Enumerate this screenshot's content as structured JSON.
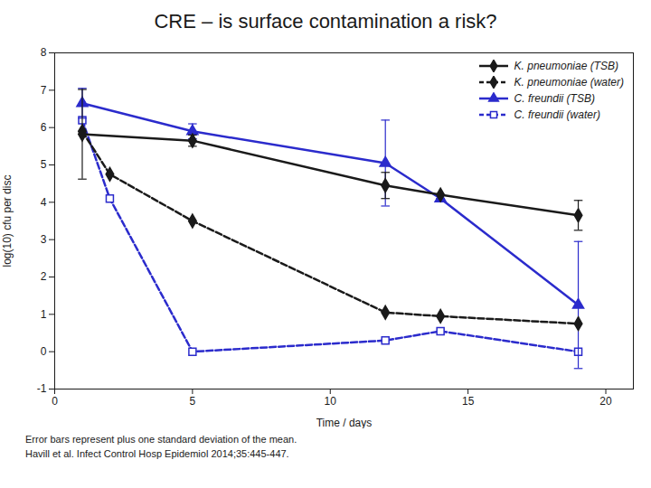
{
  "chart_data": {
    "type": "line",
    "title": "CRE – is surface contamination a risk?",
    "xlabel": "Time / days",
    "ylabel": "log(10) cfu per disc",
    "xlim": [
      0,
      21
    ],
    "ylim": [
      -1,
      8
    ],
    "xticks": [
      0,
      5,
      10,
      15,
      20
    ],
    "yticks": [
      -1,
      0,
      1,
      2,
      3,
      4,
      5,
      6,
      7,
      8
    ],
    "legend": "upper right",
    "series": [
      {
        "name": "K. pneumoniae (TSB)",
        "color": "#1a1a1a",
        "marker": "diamond",
        "line_style": "solid",
        "x": [
          1,
          5,
          12,
          14,
          19
        ],
        "values": [
          5.82,
          5.65,
          4.45,
          4.2,
          3.65
        ],
        "yerr": [
          1.2,
          0.15,
          0.35,
          0.0,
          0.4
        ]
      },
      {
        "name": "K. pneumoniae (water)",
        "color": "#1a1a1a",
        "marker": "diamond",
        "line_style": "dashed",
        "x": [
          1,
          2,
          5,
          12,
          14,
          19
        ],
        "values": [
          5.9,
          4.75,
          3.5,
          1.05,
          0.95,
          0.75
        ]
      },
      {
        "name": "C. freundii (TSB)",
        "color": "#2b2bcc",
        "marker": "triangle",
        "line_style": "solid",
        "x": [
          1,
          5,
          12,
          14,
          19
        ],
        "values": [
          6.65,
          5.9,
          5.05,
          4.1,
          1.25
        ],
        "yerr": [
          0.4,
          0.2,
          1.15,
          0.0,
          1.7
        ]
      },
      {
        "name": "C. freundii (water)",
        "color": "#2b2bcc",
        "marker": "square_open",
        "line_style": "dashed",
        "x": [
          1,
          2,
          5,
          12,
          14,
          19
        ],
        "values": [
          6.2,
          4.1,
          0.0,
          0.3,
          0.55,
          0.0
        ]
      }
    ],
    "annotations": [
      "Error bars represent plus one standard deviation of the mean.",
      "Havill et al. Infect Control Hosp Epidemiol 2014;35:445-447."
    ]
  }
}
